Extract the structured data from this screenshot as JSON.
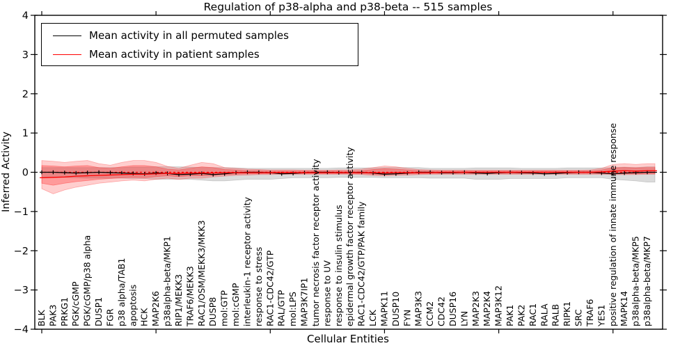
{
  "title": "Regulation of p38-alpha and p38-beta -- 515 samples",
  "legend": {
    "items": [
      {
        "label": "Mean activity in all permuted samples",
        "color": "#000000"
      },
      {
        "label": "Mean activity in patient samples",
        "color": "#ff0000"
      }
    ]
  },
  "chart_data": {
    "type": "line",
    "title": "Regulation of p38-alpha and p38-beta -- 515 samples",
    "xlabel": "Cellular Entities",
    "ylabel": "Inferred Activity",
    "ylim": [
      -4,
      4
    ],
    "ytick_values": [
      4,
      3,
      2,
      1,
      0,
      -1,
      -2,
      -3,
      -4
    ],
    "ytick_labels": [
      "4",
      "3",
      "2",
      "1",
      "0",
      "−1",
      "−2",
      "−3",
      "−4"
    ],
    "xtick_indices": [
      0,
      10,
      20,
      30,
      40,
      50
    ],
    "grid": false,
    "legend_position": "upper left",
    "categories": [
      "BLK",
      "PAK3",
      "PRKG1",
      "PGK/cGMP",
      "PGK/cGMP/p38 alpha",
      "DUSP1",
      "FGR",
      "p38 alpha/TAB1",
      "apoptosis",
      "HCK",
      "MAP2K6",
      "p38alpha-beta/MKP1",
      "RIP1/MEKK3",
      "TRAF6/MEKK3",
      "RAC1/OSM/MEKK3/MKK3",
      "DUSP8",
      "mol:GTP",
      "mol:cGMP",
      "interleukin-1 receptor activity",
      "response to stress",
      "RAC1-CDC42/GTP",
      "RAL/GTP",
      "mol:LPS",
      "MAP3K7IP1",
      "tumor necrosis factor receptor activity",
      "response to UV",
      "response to insulin stimulus",
      "epidermal growth factor receptor activity",
      "RAC1-CDC42/GTP/PAK family",
      "LCK",
      "MAPK11",
      "DUSP10",
      "FYN",
      "MAP3K3",
      "CCM2",
      "CDC42",
      "DUSP16",
      "LYN",
      "MAP2K3",
      "MAP2K4",
      "MAP3K12",
      "PAK1",
      "PAK2",
      "RAC1",
      "RALA",
      "RALB",
      "RIPK1",
      "SRC",
      "TRAF6",
      "YES1",
      "positive regulation of innate immune response",
      "MAPK14",
      "p38alpha-beta/MKP5",
      "p38alpha-beta/MKP7"
    ],
    "series": [
      {
        "name": "Mean activity in all permuted samples",
        "color": "#000000",
        "style": "solid",
        "markers": "vertical-tick",
        "values": [
          0.0,
          0.0,
          -0.01,
          -0.02,
          -0.01,
          0.0,
          -0.01,
          -0.02,
          -0.03,
          -0.04,
          -0.02,
          -0.03,
          -0.06,
          -0.05,
          -0.03,
          -0.06,
          -0.04,
          -0.01,
          0.0,
          0.0,
          -0.01,
          -0.04,
          -0.03,
          -0.01,
          0.0,
          0.0,
          -0.01,
          -0.01,
          0.0,
          -0.02,
          -0.05,
          -0.04,
          -0.02,
          0.0,
          0.0,
          -0.01,
          -0.01,
          0.0,
          -0.02,
          -0.03,
          -0.01,
          0.0,
          -0.01,
          -0.02,
          -0.04,
          -0.03,
          -0.01,
          0.0,
          0.0,
          -0.02,
          -0.04,
          -0.02,
          -0.01,
          0.0
        ]
      },
      {
        "name": "Mean activity in patient samples",
        "color": "#ff0000",
        "style": "solid",
        "markers": "none",
        "values": [
          -0.14,
          -0.13,
          -0.12,
          -0.1,
          -0.09,
          -0.08,
          -0.07,
          -0.06,
          -0.05,
          -0.05,
          -0.04,
          -0.03,
          -0.03,
          -0.02,
          -0.02,
          -0.02,
          -0.01,
          -0.01,
          -0.01,
          -0.01,
          -0.01,
          -0.01,
          -0.01,
          -0.01,
          -0.01,
          -0.01,
          -0.01,
          -0.01,
          -0.01,
          -0.01,
          -0.02,
          -0.01,
          -0.01,
          -0.01,
          -0.01,
          0.0,
          0.0,
          0.0,
          0.0,
          0.0,
          0.0,
          0.0,
          0.0,
          0.0,
          0.0,
          0.0,
          0.0,
          0.0,
          0.0,
          0.01,
          0.03,
          0.04,
          0.03,
          0.04
        ]
      }
    ],
    "reference_line": {
      "y": 0,
      "color": "#ff0000",
      "style": "dashed"
    },
    "bands": [
      {
        "name": "permuted-samples-spread",
        "color": "#999999",
        "opacity": 0.35,
        "upper": [
          0.12,
          0.12,
          0.12,
          0.12,
          0.12,
          0.12,
          0.12,
          0.12,
          0.13,
          0.13,
          0.14,
          0.14,
          0.14,
          0.13,
          0.12,
          0.12,
          0.12,
          0.11,
          0.1,
          0.1,
          0.1,
          0.1,
          0.1,
          0.1,
          0.1,
          0.1,
          0.11,
          0.11,
          0.11,
          0.11,
          0.12,
          0.12,
          0.12,
          0.12,
          0.1,
          0.1,
          0.1,
          0.1,
          0.11,
          0.11,
          0.11,
          0.11,
          0.1,
          0.1,
          0.1,
          0.1,
          0.11,
          0.11,
          0.11,
          0.11,
          0.12,
          0.13,
          0.12,
          0.14
        ],
        "lower": [
          -0.12,
          -0.13,
          -0.13,
          -0.14,
          -0.15,
          -0.15,
          -0.15,
          -0.15,
          -0.16,
          -0.16,
          -0.18,
          -0.18,
          -0.18,
          -0.18,
          -0.2,
          -0.22,
          -0.22,
          -0.2,
          -0.18,
          -0.18,
          -0.18,
          -0.16,
          -0.14,
          -0.14,
          -0.14,
          -0.14,
          -0.13,
          -0.13,
          -0.13,
          -0.13,
          -0.14,
          -0.14,
          -0.14,
          -0.14,
          -0.15,
          -0.15,
          -0.15,
          -0.15,
          -0.18,
          -0.18,
          -0.18,
          -0.16,
          -0.16,
          -0.16,
          -0.16,
          -0.16,
          -0.14,
          -0.14,
          -0.14,
          -0.14,
          -0.18,
          -0.2,
          -0.22,
          -0.25
        ]
      },
      {
        "name": "patient-samples-spread-outer",
        "color": "#ff2222",
        "opacity": 0.22,
        "upper": [
          0.3,
          0.28,
          0.25,
          0.28,
          0.3,
          0.22,
          0.18,
          0.25,
          0.3,
          0.3,
          0.25,
          0.15,
          0.1,
          0.18,
          0.25,
          0.22,
          0.12,
          0.1,
          0.08,
          0.07,
          0.06,
          0.06,
          0.06,
          0.05,
          0.05,
          0.05,
          0.06,
          0.06,
          0.08,
          0.12,
          0.16,
          0.14,
          0.1,
          0.07,
          0.06,
          0.05,
          0.05,
          0.05,
          0.05,
          0.05,
          0.05,
          0.05,
          0.05,
          0.05,
          0.05,
          0.05,
          0.05,
          0.05,
          0.06,
          0.1,
          0.2,
          0.22,
          0.2,
          0.22
        ],
        "lower": [
          -0.42,
          -0.55,
          -0.45,
          -0.38,
          -0.33,
          -0.28,
          -0.25,
          -0.22,
          -0.2,
          -0.22,
          -0.18,
          -0.15,
          -0.18,
          -0.15,
          -0.15,
          -0.12,
          -0.1,
          -0.08,
          -0.07,
          -0.06,
          -0.06,
          -0.05,
          -0.05,
          -0.05,
          -0.05,
          -0.05,
          -0.05,
          -0.05,
          -0.06,
          -0.08,
          -0.09,
          -0.08,
          -0.07,
          -0.06,
          -0.05,
          -0.05,
          -0.05,
          -0.05,
          -0.05,
          -0.05,
          -0.05,
          -0.05,
          -0.05,
          -0.05,
          -0.05,
          -0.05,
          -0.05,
          -0.05,
          -0.05,
          -0.05,
          -0.06,
          -0.06,
          -0.06,
          -0.05
        ]
      },
      {
        "name": "patient-samples-spread-inner",
        "color": "#ff2222",
        "opacity": 0.3,
        "upper": [
          0.17,
          0.16,
          0.14,
          0.16,
          0.17,
          0.12,
          0.1,
          0.14,
          0.17,
          0.17,
          0.14,
          0.08,
          0.06,
          0.1,
          0.14,
          0.12,
          0.07,
          0.06,
          0.04,
          0.04,
          0.03,
          0.03,
          0.03,
          0.03,
          0.03,
          0.03,
          0.03,
          0.03,
          0.04,
          0.07,
          0.09,
          0.08,
          0.06,
          0.04,
          0.03,
          0.03,
          0.03,
          0.03,
          0.03,
          0.03,
          0.03,
          0.03,
          0.03,
          0.03,
          0.03,
          0.03,
          0.03,
          0.03,
          0.03,
          0.06,
          0.11,
          0.12,
          0.11,
          0.12
        ],
        "lower": [
          -0.28,
          -0.33,
          -0.28,
          -0.24,
          -0.21,
          -0.18,
          -0.16,
          -0.14,
          -0.13,
          -0.14,
          -0.11,
          -0.09,
          -0.11,
          -0.09,
          -0.09,
          -0.08,
          -0.06,
          -0.05,
          -0.04,
          -0.04,
          -0.03,
          -0.03,
          -0.03,
          -0.03,
          -0.03,
          -0.03,
          -0.03,
          -0.03,
          -0.04,
          -0.05,
          -0.06,
          -0.05,
          -0.04,
          -0.04,
          -0.03,
          -0.03,
          -0.03,
          -0.03,
          -0.03,
          -0.03,
          -0.03,
          -0.03,
          -0.03,
          -0.03,
          -0.03,
          -0.03,
          -0.03,
          -0.03,
          -0.03,
          -0.03,
          -0.04,
          -0.04,
          -0.04,
          -0.03
        ]
      }
    ]
  }
}
